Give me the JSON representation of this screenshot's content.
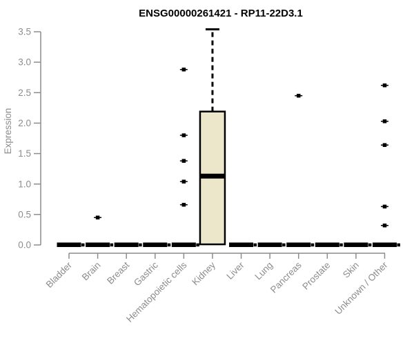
{
  "chart_data": {
    "type": "boxplot",
    "title": "ENSG00000261421 - RP11-22D3.1",
    "ylabel": "Expression",
    "xlabel": "",
    "ylim": [
      0,
      3.5
    ],
    "yticks": [
      "0.0",
      "0.5",
      "1.0",
      "1.5",
      "2.0",
      "2.5",
      "3.0",
      "3.5"
    ],
    "grid": false,
    "legend": false,
    "categories": [
      "Bladder",
      "Brain",
      "Breast",
      "Gastric",
      "Hematopoietic cells",
      "Kidney",
      "Liver",
      "Lung",
      "Pancreas",
      "Prostate",
      "Skin",
      "Unknown / Other"
    ],
    "series": [
      {
        "label": "Bladder",
        "q1": 0,
        "median": 0,
        "q3": 0,
        "outliers": []
      },
      {
        "label": "Brain",
        "q1": 0,
        "median": 0,
        "q3": 0,
        "outliers": [
          0.45
        ]
      },
      {
        "label": "Breast",
        "q1": 0,
        "median": 0,
        "q3": 0,
        "outliers": []
      },
      {
        "label": "Gastric",
        "q1": 0,
        "median": 0,
        "q3": 0,
        "outliers": []
      },
      {
        "label": "Hematopoietic cells",
        "q1": 0,
        "median": 0,
        "q3": 0,
        "outliers": [
          2.88,
          1.8,
          1.38,
          1.04,
          0.66
        ]
      },
      {
        "label": "Kidney",
        "q1": 0.01,
        "median": 1.13,
        "q3": 2.19,
        "whisker_high": 3.54,
        "outliers": []
      },
      {
        "label": "Liver",
        "q1": 0,
        "median": 0,
        "q3": 0,
        "outliers": []
      },
      {
        "label": "Lung",
        "q1": 0,
        "median": 0,
        "q3": 0,
        "outliers": []
      },
      {
        "label": "Pancreas",
        "q1": 0,
        "median": 0,
        "q3": 0,
        "outliers": [
          2.45
        ]
      },
      {
        "label": "Prostate",
        "q1": 0,
        "median": 0,
        "q3": 0,
        "outliers": []
      },
      {
        "label": "Skin",
        "q1": 0,
        "median": 0,
        "q3": 0,
        "outliers": []
      },
      {
        "label": "Unknown / Other",
        "q1": 0,
        "median": 0,
        "q3": 0,
        "outliers": [
          2.62,
          2.03,
          1.64,
          0.63,
          0.32
        ]
      }
    ],
    "colors": {
      "box_fill": "#ECE6CB",
      "ink": "#000000",
      "axis": "#8C8C8C",
      "background": "#FFFFFF"
    }
  }
}
